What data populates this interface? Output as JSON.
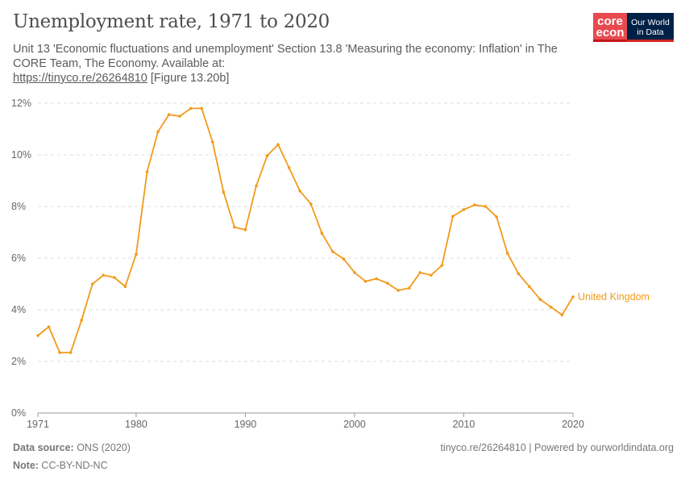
{
  "header": {
    "title": "Unemployment rate, 1971 to 2020",
    "subtitle": "Unit 13 'Economic fluctuations and unemployment' Section 13.8 'Measuring the economy: Inflation' in The CORE Team, The Economy. Available at:",
    "subtitle_link": "https://tinyco.re/26264810",
    "subtitle_suffix": " [Figure 13.20b]",
    "logo_core": "core econ",
    "logo_owid": "Our World in Data"
  },
  "footer": {
    "source_label": "Data source:",
    "source_value": " ONS (2020)",
    "note_label": "Note:",
    "note_value": " CC-BY-ND-NC",
    "credit": "tinyco.re/26264810 | Powered by ourworldindata.org"
  },
  "colors": {
    "series": "#f29a1b",
    "grid": "#dddddd",
    "axis": "#999999"
  },
  "chart_data": {
    "type": "line",
    "title": "Unemployment rate, 1971 to 2020",
    "xlim": [
      1971,
      2020
    ],
    "ylim": [
      0,
      12
    ],
    "x_ticks": [
      "1971",
      "1980",
      "1990",
      "2000",
      "2010",
      "2020"
    ],
    "y_ticks": [
      "0%",
      "2%",
      "4%",
      "6%",
      "8%",
      "10%",
      "12%"
    ],
    "grid": "horizontal dashed",
    "series": [
      {
        "name": "United Kingdom",
        "x": [
          1971,
          1972,
          1973,
          1974,
          1975,
          1976,
          1977,
          1978,
          1979,
          1980,
          1981,
          1982,
          1983,
          1984,
          1985,
          1986,
          1987,
          1988,
          1989,
          1990,
          1991,
          1992,
          1993,
          1994,
          1995,
          1996,
          1997,
          1998,
          1999,
          2000,
          2001,
          2002,
          2003,
          2004,
          2005,
          2006,
          2007,
          2008,
          2009,
          2010,
          2011,
          2012,
          2013,
          2014,
          2015,
          2016,
          2017,
          2018,
          2019,
          2020
        ],
        "values": [
          3.0,
          3.34,
          2.34,
          2.34,
          3.6,
          5.0,
          5.34,
          5.25,
          4.9,
          6.15,
          9.34,
          10.9,
          11.56,
          11.5,
          11.8,
          11.8,
          10.5,
          8.56,
          7.2,
          7.1,
          8.8,
          9.97,
          10.4,
          9.5,
          8.6,
          8.1,
          6.97,
          6.25,
          5.97,
          5.44,
          5.1,
          5.2,
          5.03,
          4.75,
          4.84,
          5.44,
          5.34,
          5.72,
          7.62,
          7.88,
          8.06,
          8.0,
          7.6,
          6.19,
          5.4,
          4.9,
          4.4,
          4.1,
          3.8,
          4.5
        ]
      }
    ]
  }
}
